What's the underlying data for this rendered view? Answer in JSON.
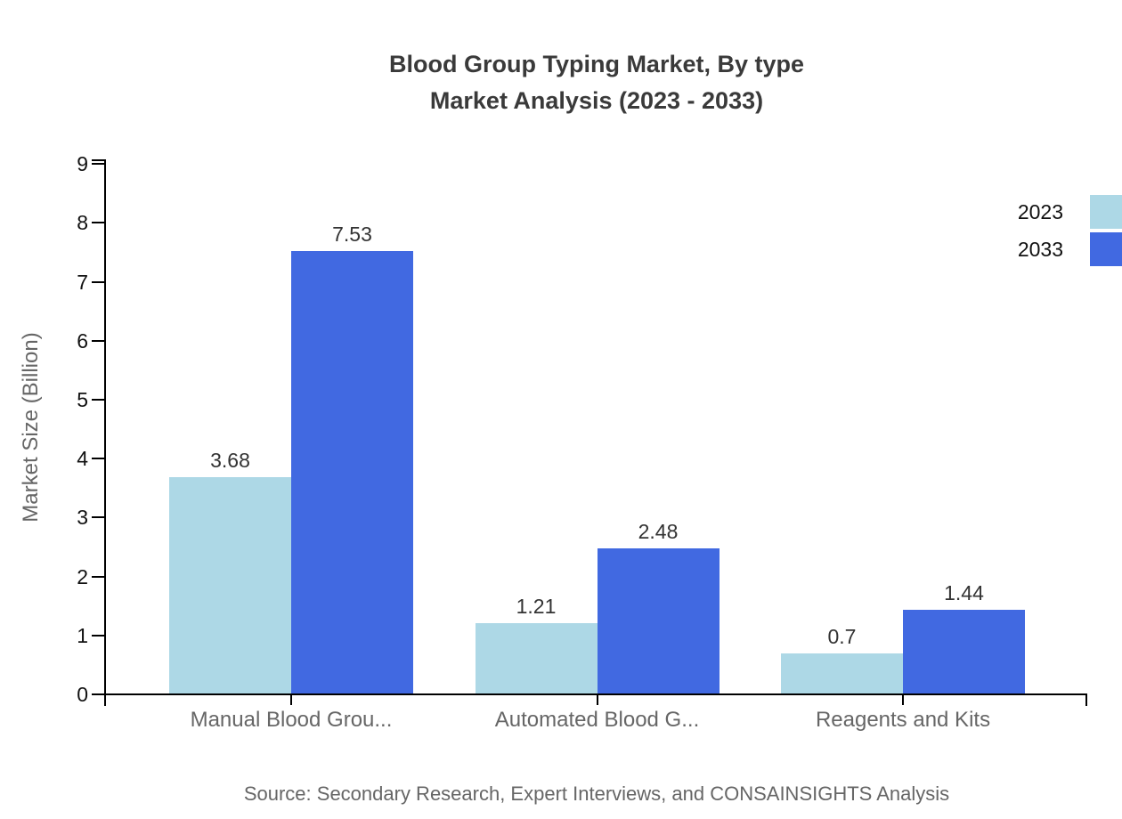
{
  "title": {
    "line1": "Blood Group Typing Market, By type",
    "line2": "Market Analysis (2023 - 2033)"
  },
  "source_note": "Source: Secondary Research, Expert Interviews, and CONSAINSIGHTS Analysis",
  "chart_data": {
    "type": "bar",
    "title": "Blood Group Typing Market, By type Market Analysis (2023 - 2033)",
    "categories": [
      "Manual Blood Grou...",
      "Automated Blood G...",
      "Reagents and Kits"
    ],
    "series": [
      {
        "name": "2023",
        "color": "#ADD8E6",
        "values": [
          3.68,
          1.21,
          0.7
        ]
      },
      {
        "name": "2033",
        "color": "#4169E1",
        "values": [
          7.53,
          2.48,
          1.44
        ]
      }
    ],
    "xlabel": "",
    "ylabel": "Market Size (Billion)",
    "ylim": [
      0,
      9
    ],
    "yticks": [
      0,
      1,
      2,
      3,
      4,
      5,
      6,
      7,
      8,
      9
    ],
    "grid": false,
    "legend_position": "top-right",
    "value_labels_shown": true
  },
  "colors": {
    "background": "#ffffff",
    "axis": "#000000",
    "title_text": "#3a3a3a",
    "tick_label_text": "#111111",
    "value_label_text": "#333333",
    "muted_text": "#666666",
    "series_2023": "#ADD8E6",
    "series_2033": "#4169E1"
  }
}
